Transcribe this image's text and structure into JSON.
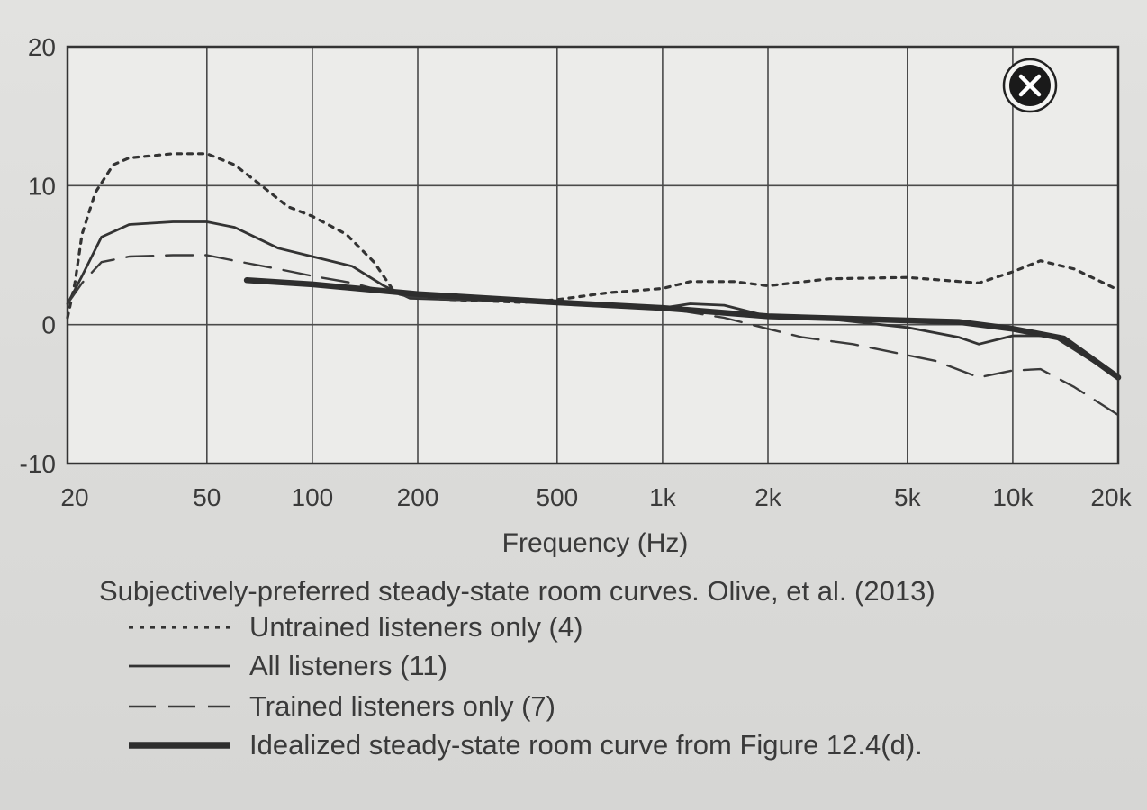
{
  "chart_data": {
    "type": "line",
    "title": "Subjectively-preferred steady-state room curves. Olive, et al. (2013)",
    "xlabel": "Frequency (Hz)",
    "ylabel": "",
    "xscale": "log",
    "xlim": [
      20,
      20000
    ],
    "ylim": [
      -10,
      20
    ],
    "grid": true,
    "legend_position": "bottom",
    "x_ticks": [
      {
        "value": 20,
        "label": "20"
      },
      {
        "value": 50,
        "label": "50"
      },
      {
        "value": 100,
        "label": "100"
      },
      {
        "value": 200,
        "label": "200"
      },
      {
        "value": 500,
        "label": "500"
      },
      {
        "value": 1000,
        "label": "1k"
      },
      {
        "value": 2000,
        "label": "2k"
      },
      {
        "value": 5000,
        "label": "5k"
      },
      {
        "value": 10000,
        "label": "10k"
      },
      {
        "value": 20000,
        "label": "20k"
      }
    ],
    "y_ticks": [
      {
        "value": 20,
        "label": "20"
      },
      {
        "value": 10,
        "label": "10"
      },
      {
        "value": 0,
        "label": "0"
      },
      {
        "value": -10,
        "label": "-10"
      }
    ],
    "series": [
      {
        "name": "Untrained listeners only (4)",
        "style": "dotted",
        "points": [
          [
            20,
            0.5
          ],
          [
            21,
            3
          ],
          [
            22,
            6.5
          ],
          [
            24,
            9.5
          ],
          [
            27,
            11.5
          ],
          [
            30,
            12
          ],
          [
            40,
            12.3
          ],
          [
            50,
            12.3
          ],
          [
            60,
            11.5
          ],
          [
            70,
            10.2
          ],
          [
            85,
            8.5
          ],
          [
            100,
            7.8
          ],
          [
            125,
            6.5
          ],
          [
            150,
            4.5
          ],
          [
            170,
            2.5
          ],
          [
            190,
            2
          ],
          [
            250,
            1.8
          ],
          [
            400,
            1.6
          ],
          [
            500,
            1.8
          ],
          [
            700,
            2.3
          ],
          [
            1000,
            2.6
          ],
          [
            1200,
            3.1
          ],
          [
            1600,
            3.1
          ],
          [
            2000,
            2.8
          ],
          [
            3000,
            3.3
          ],
          [
            5000,
            3.4
          ],
          [
            8000,
            3
          ],
          [
            10000,
            3.8
          ],
          [
            12000,
            4.6
          ],
          [
            15000,
            4
          ],
          [
            20000,
            2.5
          ]
        ]
      },
      {
        "name": "All listeners (11)",
        "style": "solid",
        "points": [
          [
            20,
            1.5
          ],
          [
            22,
            3.5
          ],
          [
            25,
            6.3
          ],
          [
            30,
            7.2
          ],
          [
            40,
            7.4
          ],
          [
            50,
            7.4
          ],
          [
            60,
            7
          ],
          [
            80,
            5.5
          ],
          [
            100,
            4.9
          ],
          [
            130,
            4.2
          ],
          [
            160,
            2.8
          ],
          [
            190,
            1.9
          ],
          [
            250,
            1.8
          ],
          [
            400,
            1.7
          ],
          [
            600,
            1.4
          ],
          [
            1000,
            1.2
          ],
          [
            1200,
            1.5
          ],
          [
            1500,
            1.4
          ],
          [
            2000,
            0.6
          ],
          [
            3000,
            0.4
          ],
          [
            5000,
            -0.2
          ],
          [
            7000,
            -0.9
          ],
          [
            8000,
            -1.4
          ],
          [
            10000,
            -0.8
          ],
          [
            13000,
            -0.8
          ],
          [
            20000,
            -3.8
          ]
        ]
      },
      {
        "name": "Trained listeners only (7)",
        "style": "dashed",
        "points": [
          [
            20,
            1.5
          ],
          [
            22,
            3
          ],
          [
            25,
            4.5
          ],
          [
            30,
            4.9
          ],
          [
            40,
            5
          ],
          [
            50,
            5
          ],
          [
            60,
            4.6
          ],
          [
            80,
            4
          ],
          [
            100,
            3.5
          ],
          [
            130,
            3
          ],
          [
            160,
            2.4
          ],
          [
            190,
            2
          ],
          [
            250,
            1.8
          ],
          [
            400,
            1.7
          ],
          [
            600,
            1.4
          ],
          [
            1000,
            1.2
          ],
          [
            1500,
            0.5
          ],
          [
            2000,
            -0.3
          ],
          [
            2500,
            -0.9
          ],
          [
            3500,
            -1.4
          ],
          [
            5000,
            -2.2
          ],
          [
            6000,
            -2.6
          ],
          [
            8000,
            -3.8
          ],
          [
            10000,
            -3.3
          ],
          [
            12000,
            -3.2
          ],
          [
            15000,
            -4.5
          ],
          [
            20000,
            -6.5
          ]
        ]
      },
      {
        "name": "Idealized steady-state room curve from Figure 12.4(d).",
        "style": "thick",
        "points": [
          [
            65,
            3.2
          ],
          [
            100,
            2.9
          ],
          [
            200,
            2.2
          ],
          [
            500,
            1.6
          ],
          [
            1000,
            1.2
          ],
          [
            2000,
            0.6
          ],
          [
            5000,
            0.3
          ],
          [
            7000,
            0.2
          ],
          [
            10000,
            -0.3
          ],
          [
            14000,
            -1
          ],
          [
            20000,
            -3.8
          ]
        ]
      }
    ]
  },
  "close_icon": "close-icon"
}
